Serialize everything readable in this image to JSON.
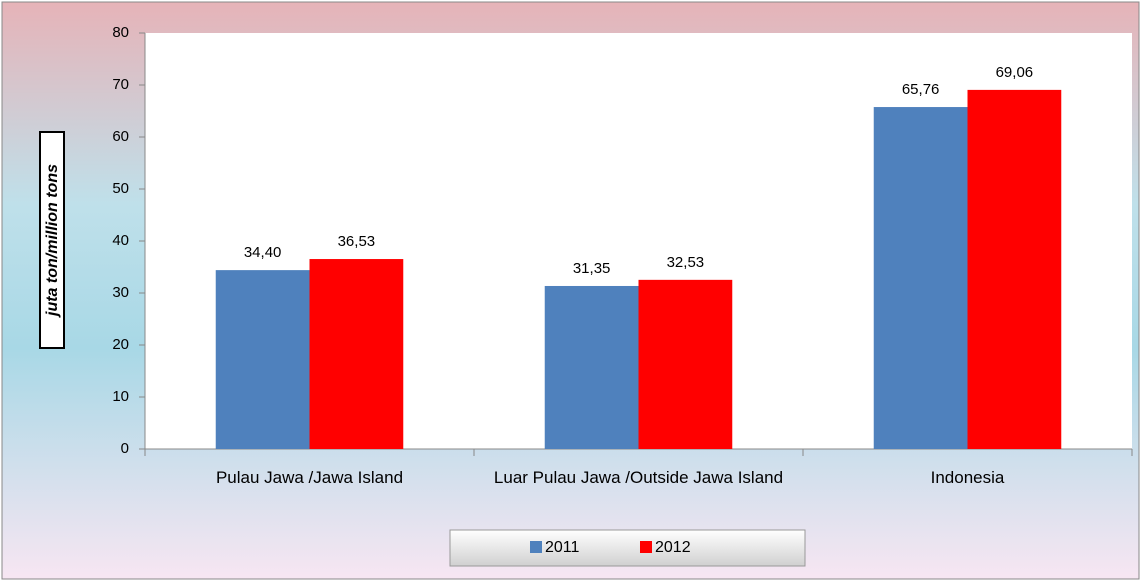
{
  "chart_data": {
    "type": "bar",
    "y_label": "juta ton/million tons",
    "categories": [
      "Pulau Jawa /Jawa Island",
      "Luar Pulau Jawa /Outside Jawa Island",
      "Indonesia"
    ],
    "series": [
      {
        "name": "2011",
        "color": "#4f81bd",
        "values": [
          34.4,
          31.35,
          65.76
        ],
        "value_labels": [
          "34,40",
          "31,35",
          "65,76"
        ]
      },
      {
        "name": "2012",
        "color": "#ff0000",
        "values": [
          36.53,
          32.53,
          69.06
        ],
        "value_labels": [
          "36,53",
          "32,53",
          "69,06"
        ]
      }
    ],
    "ylim": [
      0,
      80
    ],
    "yticks": [
      0,
      10,
      20,
      30,
      40,
      50,
      60,
      70,
      80
    ],
    "grid": false,
    "legend": "bottom"
  }
}
